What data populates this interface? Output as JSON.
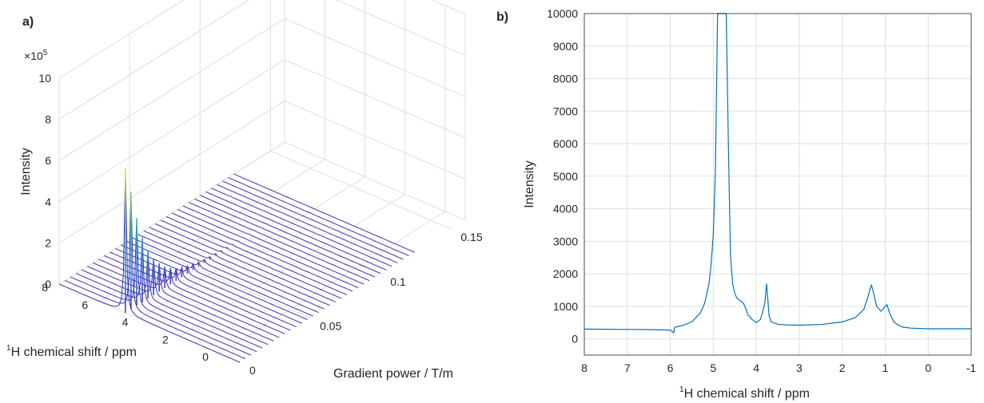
{
  "panels": {
    "a": "a)",
    "b": "b)"
  },
  "chart_data": [
    {
      "type": "line",
      "subtype": "waterfall-3d",
      "title": "",
      "xlabel": "Gradient power / T/m",
      "ylabel": "1H chemical shift / ppm",
      "zlabel": "Intensity",
      "z_multiplier_label": "×10",
      "z_multiplier_exponent": "5",
      "xlim": [
        0,
        0.16
      ],
      "ylim": [
        -1,
        8
      ],
      "zlim": [
        0,
        1000000
      ],
      "x_ticks": [
        "0",
        "0.05",
        "0.1",
        "0.15"
      ],
      "x_tick_values": [
        0,
        0.05,
        0.1,
        0.15
      ],
      "y_ticks": [
        "0",
        "2",
        "4",
        "6",
        "8"
      ],
      "y_tick_values": [
        0,
        2,
        4,
        6,
        8
      ],
      "z_ticks": [
        "0",
        "2",
        "4",
        "6",
        "8",
        "10"
      ],
      "z_tick_values": [
        0,
        2,
        4,
        6,
        8,
        10
      ],
      "traces": 32,
      "peak_shift_ppm": 4.7,
      "gradient_values": [
        0.0,
        0.004,
        0.008,
        0.012,
        0.016,
        0.02,
        0.024,
        0.028,
        0.032,
        0.036,
        0.04,
        0.044,
        0.048,
        0.052,
        0.056,
        0.06,
        0.064,
        0.068,
        0.072,
        0.076,
        0.08,
        0.084,
        0.088,
        0.092,
        0.096,
        0.1,
        0.104,
        0.108,
        0.112,
        0.116,
        0.12,
        0.124
      ],
      "peak_intensity": [
        700000,
        570000,
        425000,
        315000,
        235000,
        178000,
        136000,
        104000,
        80000,
        62000,
        48000,
        37000,
        29000,
        22500,
        17500,
        13500,
        10500,
        8000,
        6000,
        4500,
        3500,
        2500,
        2000,
        1500,
        1000,
        800,
        600,
        500,
        400,
        300,
        200,
        150
      ],
      "grid": true,
      "colormap": [
        "#3b2fb0",
        "#2a89e0",
        "#21c2b0",
        "#9bd43a",
        "#f2e82a"
      ]
    },
    {
      "type": "line",
      "title": "",
      "xlabel": "1H chemical shift / ppm",
      "ylabel": "Intensity",
      "xlim": [
        8,
        -1
      ],
      "ylim": [
        -500,
        10000
      ],
      "x_ticks": [
        "8",
        "7",
        "6",
        "5",
        "4",
        "3",
        "2",
        "1",
        "0",
        "-1"
      ],
      "x_tick_values": [
        8,
        7,
        6,
        5,
        4,
        3,
        2,
        1,
        0,
        -1
      ],
      "y_ticks": [
        "0",
        "1000",
        "2000",
        "3000",
        "4000",
        "5000",
        "6000",
        "7000",
        "8000",
        "9000",
        "10000"
      ],
      "y_tick_values": [
        0,
        1000,
        2000,
        3000,
        4000,
        5000,
        6000,
        7000,
        8000,
        9000,
        10000
      ],
      "grid": true,
      "color": "#0072bd",
      "series": [
        {
          "x": [
            8.0,
            7.5,
            7.0,
            6.5,
            6.0,
            5.92,
            5.9,
            5.85,
            5.7,
            5.5,
            5.3,
            5.2,
            5.1,
            5.05,
            5.0,
            4.95,
            4.92,
            4.9,
            4.85,
            4.7,
            4.65,
            4.6,
            4.55,
            4.5,
            4.45,
            4.4,
            4.35,
            4.3,
            4.25,
            4.2,
            4.1,
            4.0,
            3.9,
            3.8,
            3.76,
            3.73,
            3.7,
            3.65,
            3.5,
            3.3,
            3.0,
            2.5,
            2.0,
            1.7,
            1.5,
            1.4,
            1.35,
            1.32,
            1.28,
            1.2,
            1.1,
            1.0,
            0.96,
            0.9,
            0.8,
            0.7,
            0.6,
            0.4,
            0.0,
            -0.5,
            -1.0
          ],
          "y": [
            300,
            295,
            290,
            285,
            270,
            190,
            350,
            370,
            420,
            520,
            800,
            1100,
            1700,
            2300,
            3200,
            5200,
            8000,
            10000,
            10000,
            10000,
            6000,
            2600,
            1700,
            1400,
            1250,
            1200,
            1150,
            1100,
            950,
            750,
            600,
            500,
            600,
            1100,
            1700,
            1200,
            700,
            520,
            450,
            430,
            420,
            440,
            520,
            650,
            900,
            1300,
            1550,
            1650,
            1450,
            1000,
            850,
            1000,
            1050,
            800,
            520,
            420,
            360,
            330,
            310,
            310,
            310
          ]
        }
      ]
    }
  ]
}
